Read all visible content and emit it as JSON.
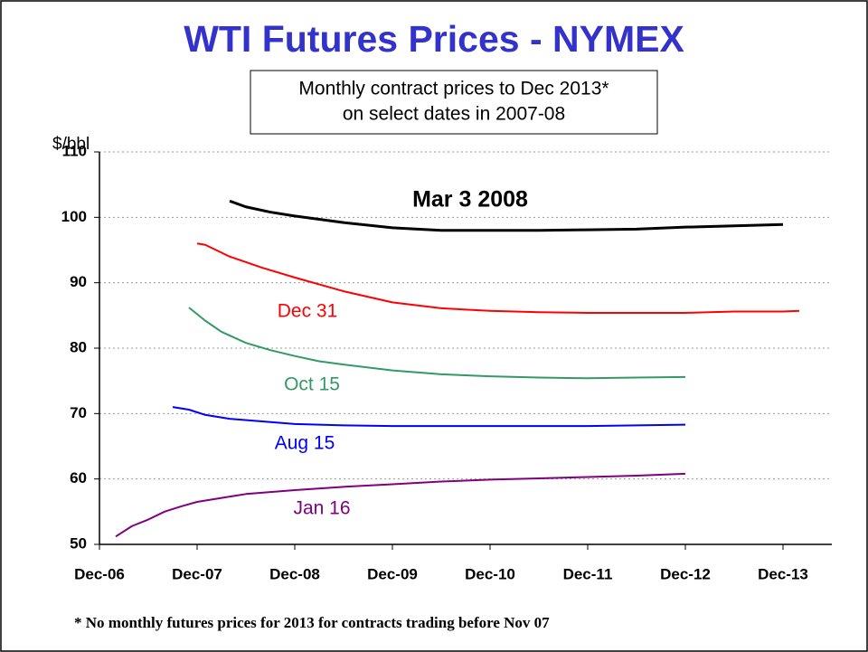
{
  "chart_data": {
    "type": "line",
    "title": "WTI Futures Prices - NYMEX",
    "subtitle": [
      "Monthly contract prices to Dec 2013*",
      "on select dates in 2007-08"
    ],
    "y_label": "$/bbl",
    "footnote": "* No monthly futures prices for 2013 for contracts trading before Nov 07",
    "xlim": [
      0,
      90
    ],
    "xticks": [
      {
        "value": 0,
        "label": "Dec-06"
      },
      {
        "value": 12,
        "label": "Dec-07"
      },
      {
        "value": 24,
        "label": "Dec-08"
      },
      {
        "value": 36,
        "label": "Dec-09"
      },
      {
        "value": 48,
        "label": "Dec-10"
      },
      {
        "value": 60,
        "label": "Dec-11"
      },
      {
        "value": 72,
        "label": "Dec-12"
      },
      {
        "value": 84,
        "label": "Dec-13"
      }
    ],
    "ylim": [
      50,
      110
    ],
    "yticks": [
      50,
      60,
      70,
      80,
      90,
      100,
      110
    ],
    "grid": true,
    "series": [
      {
        "name": "Mar 3 2008",
        "color": "#000000",
        "x": [
          16,
          18,
          21,
          24,
          30,
          36,
          42,
          48,
          54,
          60,
          66,
          72,
          78,
          84
        ],
        "values": [
          102.5,
          101.6,
          100.8,
          100.2,
          99.2,
          98.4,
          98.0,
          98.0,
          98.0,
          98.1,
          98.2,
          98.5,
          98.7,
          98.9
        ]
      },
      {
        "name": "Dec 31",
        "color": "#ff0000",
        "x": [
          12,
          13,
          16,
          20,
          24,
          30,
          36,
          42,
          48,
          54,
          60,
          72,
          78,
          84,
          86
        ],
        "values": [
          96.0,
          95.8,
          94.0,
          92.3,
          90.8,
          88.7,
          87.0,
          86.1,
          85.7,
          85.5,
          85.4,
          85.4,
          85.6,
          85.6,
          85.7
        ]
      },
      {
        "name": "Oct 15",
        "color": "#339966",
        "x": [
          11,
          13,
          15,
          18,
          21,
          24,
          27,
          30,
          36,
          42,
          48,
          54,
          60,
          66,
          72
        ],
        "values": [
          86.2,
          84.2,
          82.5,
          80.8,
          79.7,
          78.8,
          78.0,
          77.5,
          76.6,
          76.0,
          75.7,
          75.5,
          75.4,
          75.5,
          75.6
        ]
      },
      {
        "name": "Aug 15",
        "color": "#0000ff",
        "x": [
          9,
          11,
          13,
          16,
          20,
          24,
          30,
          36,
          48,
          60,
          66,
          72
        ],
        "values": [
          71.0,
          70.6,
          69.8,
          69.2,
          68.8,
          68.4,
          68.2,
          68.1,
          68.1,
          68.1,
          68.2,
          68.3
        ]
      },
      {
        "name": "Jan 16",
        "color": "#800080",
        "x": [
          2,
          4,
          6,
          8,
          10,
          12,
          15,
          18,
          24,
          30,
          36,
          42,
          48,
          54,
          60,
          66,
          72
        ],
        "values": [
          51.2,
          52.8,
          53.8,
          55.0,
          55.8,
          56.5,
          57.1,
          57.7,
          58.3,
          58.8,
          59.2,
          59.6,
          59.9,
          60.1,
          60.3,
          60.5,
          60.8
        ]
      }
    ]
  }
}
